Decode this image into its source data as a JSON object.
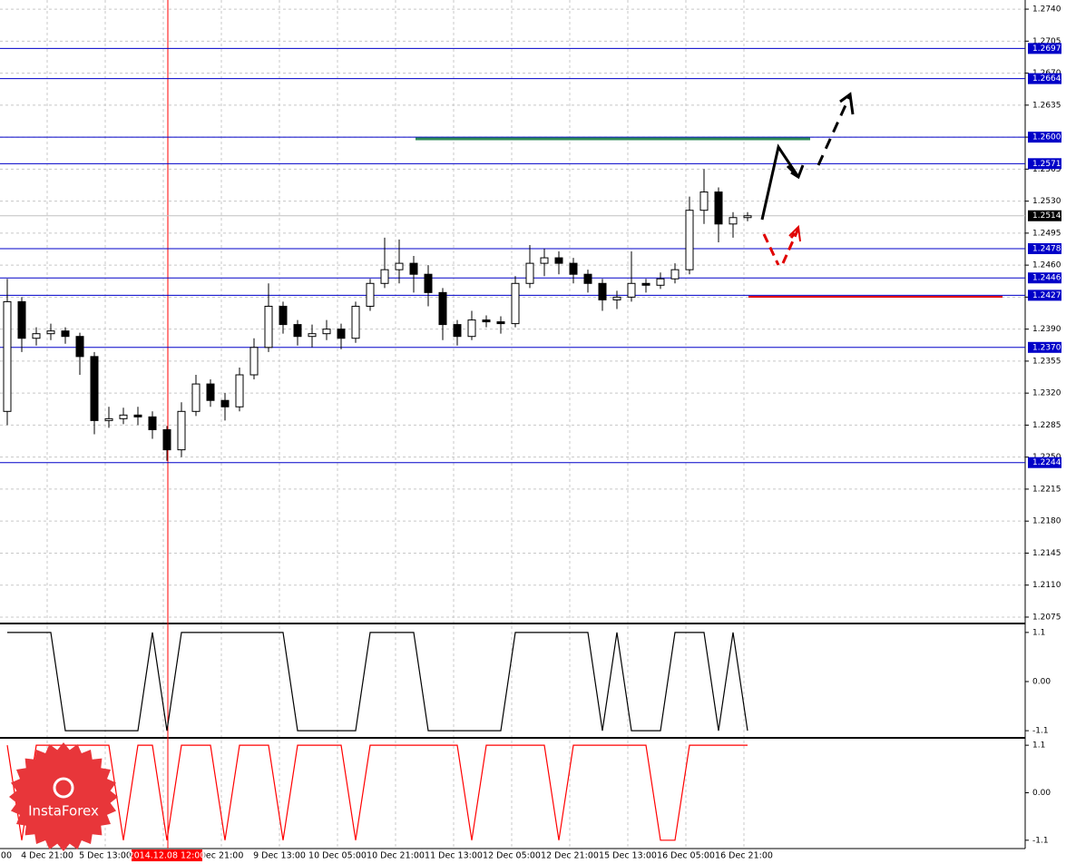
{
  "chart_data": [
    {
      "type": "candlestick",
      "open": [
        1.23,
        1.242,
        1.238,
        1.2385,
        1.2388,
        1.2382,
        1.236,
        1.229,
        1.2292,
        1.2296,
        1.2294,
        1.228,
        1.2258,
        1.23,
        1.233,
        1.2312,
        1.2305,
        1.234,
        1.237,
        1.2415,
        1.2395,
        1.2382,
        1.2385,
        1.239,
        1.238,
        1.2415,
        1.244,
        1.2455,
        1.2462,
        1.245,
        1.243,
        1.2395,
        1.2382,
        1.24,
        1.2398,
        1.2396,
        1.244,
        1.2462,
        1.2468,
        1.2462,
        1.245,
        1.244,
        1.2422,
        1.2425,
        1.244,
        1.2438,
        1.2445,
        1.2455,
        1.252,
        1.254,
        1.2505,
        1.2512
      ],
      "high": [
        1.2445,
        1.2425,
        1.2392,
        1.2396,
        1.2392,
        1.2386,
        1.2365,
        1.2305,
        1.2304,
        1.2305,
        1.23,
        1.2284,
        1.231,
        1.234,
        1.2335,
        1.232,
        1.2348,
        1.238,
        1.244,
        1.242,
        1.24,
        1.2395,
        1.24,
        1.2396,
        1.242,
        1.2445,
        1.249,
        1.2488,
        1.247,
        1.246,
        1.2435,
        1.24,
        1.241,
        1.2405,
        1.2404,
        1.2448,
        1.2482,
        1.2478,
        1.2475,
        1.2468,
        1.2455,
        1.2445,
        1.2432,
        1.2475,
        1.2445,
        1.2452,
        1.2462,
        1.2535,
        1.2565,
        1.2545,
        1.2518,
        1.2518
      ],
      "low": [
        1.2285,
        1.2365,
        1.2372,
        1.2378,
        1.2374,
        1.234,
        1.2275,
        1.2282,
        1.2286,
        1.2285,
        1.227,
        1.2246,
        1.225,
        1.2295,
        1.2305,
        1.229,
        1.23,
        1.2335,
        1.2365,
        1.2385,
        1.2372,
        1.237,
        1.2378,
        1.2368,
        1.2375,
        1.241,
        1.2435,
        1.244,
        1.243,
        1.2415,
        1.2378,
        1.2372,
        1.2378,
        1.2392,
        1.2385,
        1.2392,
        1.2435,
        1.2448,
        1.245,
        1.244,
        1.243,
        1.241,
        1.2412,
        1.242,
        1.243,
        1.2434,
        1.244,
        1.245,
        1.2505,
        1.2485,
        1.249,
        1.2508
      ],
      "close": [
        1.242,
        1.238,
        1.2385,
        1.2388,
        1.2382,
        1.236,
        1.229,
        1.2292,
        1.2296,
        1.2294,
        1.228,
        1.2258,
        1.23,
        1.233,
        1.2312,
        1.2305,
        1.234,
        1.237,
        1.2415,
        1.2395,
        1.2382,
        1.2385,
        1.239,
        1.238,
        1.2415,
        1.244,
        1.2455,
        1.2462,
        1.245,
        1.243,
        1.2395,
        1.2382,
        1.24,
        1.2398,
        1.2396,
        1.244,
        1.2462,
        1.2468,
        1.2462,
        1.245,
        1.244,
        1.2422,
        1.2425,
        1.244,
        1.2438,
        1.2445,
        1.2455,
        1.252,
        1.254,
        1.2505,
        1.2512,
        1.2514
      ],
      "color": "#000000",
      "ylim": [
        1.2069,
        1.275
      ],
      "yticks": [
        {
          "value": 1.274,
          "label": "1.2740"
        },
        1.2705,
        {
          "value": 1.267,
          "label": "1.2670"
        },
        1.2635,
        {
          "value": 1.26,
          "label": "1.2600"
        },
        1.2565,
        {
          "value": 1.253,
          "label": "1.2530"
        },
        1.2495,
        {
          "value": 1.246,
          "label": "1.2460"
        },
        1.2425,
        {
          "value": 1.239,
          "label": "1.2390"
        },
        1.2355,
        {
          "value": 1.232,
          "label": "1.2320"
        },
        1.2285,
        {
          "value": 1.225,
          "label": "1.2250"
        },
        1.2215,
        {
          "value": 1.218,
          "label": "1.2180"
        },
        1.2145,
        {
          "value": 1.211,
          "label": "1.2110"
        },
        1.2075
      ],
      "levels": [
        1.2697,
        1.2664,
        {
          "value": 1.26,
          "label": "1.2600"
        },
        1.2571,
        1.2478,
        1.2446,
        1.2427,
        {
          "value": 1.237,
          "label": "1.2370"
        },
        1.2244
      ],
      "level_color": "#0000c8",
      "current_price": 1.2514,
      "categories": [
        "00",
        "4 Dec 21:00",
        "5 Dec 13:00",
        null,
        "Dec 21:00",
        "9 Dec 13:00",
        "10 Dec 05:00",
        "10 Dec 21:00",
        "11 Dec 13:00",
        "12 Dec 05:00",
        "12 Dec 21:00",
        "15 Dec 13:00",
        "16 Dec 05:00",
        "16 Dec 21:00"
      ],
      "cursor_label": "2014.12.08 12:00",
      "grid": true
    },
    {
      "type": "line",
      "color": "#000000",
      "values": [
        1.1,
        1.1,
        1.1,
        1.1,
        -1.1,
        -1.1,
        -1.1,
        -1.1,
        -1.1,
        -1.1,
        1.1,
        -1.1,
        1.1,
        1.1,
        1.1,
        1.1,
        1.1,
        1.1,
        1.1,
        1.1,
        -1.1,
        -1.1,
        -1.1,
        -1.1,
        -1.1,
        1.1,
        1.1,
        1.1,
        1.1,
        -1.1,
        -1.1,
        -1.1,
        -1.1,
        -1.1,
        -1.1,
        1.1,
        1.1,
        1.1,
        1.1,
        1.1,
        1.1,
        -1.1,
        1.1,
        -1.1,
        -1.1,
        -1.1,
        1.1,
        1.1,
        1.1,
        -1.1,
        1.1,
        -1.1
      ],
      "ylim": [
        -1.24,
        1.28
      ],
      "yticks": [
        1.1,
        {
          "value": 0,
          "label": "0.00"
        },
        -1.1
      ]
    },
    {
      "type": "line",
      "color": "#ff0000",
      "values": [
        1.1,
        -1.1,
        1.1,
        1.1,
        1.1,
        1.1,
        1.1,
        1.1,
        -1.1,
        1.1,
        1.1,
        -1.1,
        1.1,
        1.1,
        1.1,
        -1.1,
        1.1,
        1.1,
        1.1,
        -1.1,
        1.1,
        1.1,
        1.1,
        1.1,
        -1.1,
        1.1,
        1.1,
        1.1,
        1.1,
        1.1,
        1.1,
        1.1,
        -1.1,
        1.1,
        1.1,
        1.1,
        1.1,
        1.1,
        -1.1,
        1.1,
        1.1,
        1.1,
        1.1,
        1.1,
        1.1,
        -1.1,
        -1.1,
        1.1,
        1.1,
        1.1,
        1.1,
        1.1
      ],
      "ylim": [
        -1.23,
        1.25
      ],
      "yticks": [
        1.1,
        {
          "value": 0,
          "label": "0.00"
        },
        -1.1
      ]
    }
  ],
  "watermark": "InstaForex"
}
